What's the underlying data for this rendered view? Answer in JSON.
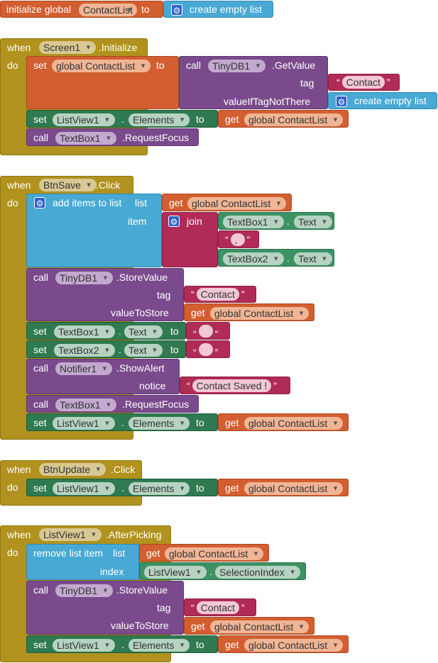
{
  "init": {
    "prefix": "initialize global",
    "var": "ContactList",
    "to": "to",
    "value": "create empty list"
  },
  "kw": {
    "when": "when",
    "do": "do",
    "set": "set",
    "to": "to",
    "call": "call",
    "get": "get",
    "item": "item",
    "index": "index",
    "list": "list",
    "join": "join",
    "tag": "tag",
    "valueToStore": "valueToStore",
    "notice": "notice",
    "valueIfTagNotThere": "valueIfTagNotThere",
    "q_open": "“",
    "q_close": "”",
    "dot": "."
  },
  "b1": {
    "component": "Screen1",
    "event": ".Initialize",
    "set_var": "global ContactList",
    "db": "TinyDB1",
    "db_method": ".GetValue",
    "tag_value": "Contact",
    "default_value": "create empty list",
    "lv": "ListView1",
    "lv_prop": "Elements",
    "get_var": "global ContactList",
    "tb": "TextBox1",
    "tb_method": ".RequestFocus"
  },
  "b2": {
    "component": "BtnSave",
    "event": ".Click",
    "add": "add items to list",
    "get_var": "global ContactList",
    "tb1": "TextBox1",
    "tb1_prop": "Text",
    "sep": ",",
    "tb2": "TextBox2",
    "tb2_prop": "Text",
    "db": "TinyDB1",
    "db_method": ".StoreValue",
    "tag_value": "Contact",
    "store_var": "global ContactList",
    "set_tb1": "TextBox1",
    "set_tb1_prop": "Text",
    "blank1": "",
    "set_tb2": "TextBox2",
    "set_tb2_prop": "Text",
    "blank2": "",
    "notifier": "Notifier1",
    "notifier_method": ".ShowAlert",
    "notice_value": "Contact Saved !",
    "focus_tb": "TextBox1",
    "focus_method": ".RequestFocus",
    "lv": "ListView1",
    "lv_prop": "Elements",
    "lv_var": "global ContactList"
  },
  "b3": {
    "component": "BtnUpdate",
    "event": ".Click",
    "lv": "ListView1",
    "lv_prop": "Elements",
    "lv_var": "global ContactList"
  },
  "b4": {
    "component": "ListView1",
    "event": ".AfterPicking",
    "remove": "remove list item",
    "get_var": "global ContactList",
    "idx_comp": "ListView1",
    "idx_prop": "SelectionIndex",
    "db": "TinyDB1",
    "db_method": ".StoreValue",
    "tag_value": "Contact",
    "store_var": "global ContactList",
    "lv": "ListView1",
    "lv_prop": "Elements",
    "lv_var": "global ContactList"
  },
  "colors": {
    "event": "#b1921e",
    "variable": "#d35e2f",
    "list": "#48a9d4",
    "component": "#7a4a8c",
    "text": "#b12b57",
    "setter": "#2f7a50"
  }
}
